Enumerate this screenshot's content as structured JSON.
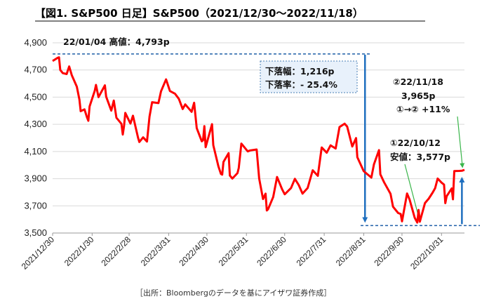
{
  "chart_data": {
    "type": "line",
    "title": "【図1. S&P500 日足】S&P500（2021/12/30～2022/11/18）",
    "ylim": [
      3500,
      4900
    ],
    "y_ticks": [
      "3,500",
      "3,700",
      "3,900",
      "4,100",
      "4,300",
      "4,500",
      "4,700",
      "4,900"
    ],
    "x_tick_labels": [
      "2021/12/30",
      "2022/1/30",
      "2022/2/28",
      "2022/3/31",
      "2022/4/30",
      "2022/5/31",
      "2022/6/30",
      "2022/7/31",
      "2022/8/31",
      "2022/9/30",
      "2022/10/31"
    ],
    "grid": true,
    "series": [
      {
        "color": "#ff0000",
        "x": [
          "2021-12-30",
          "2022-01-03",
          "2022-01-04",
          "2022-01-05",
          "2022-01-07",
          "2022-01-10",
          "2022-01-12",
          "2022-01-14",
          "2022-01-18",
          "2022-01-20",
          "2022-01-21",
          "2022-01-24",
          "2022-01-26",
          "2022-01-27",
          "2022-01-28",
          "2022-02-01",
          "2022-02-02",
          "2022-02-04",
          "2022-02-09",
          "2022-02-10",
          "2022-02-14",
          "2022-02-16",
          "2022-02-18",
          "2022-02-22",
          "2022-02-23",
          "2022-02-24",
          "2022-02-25",
          "2022-03-01",
          "2022-03-03",
          "2022-03-07",
          "2022-03-08",
          "2022-03-11",
          "2022-03-14",
          "2022-03-16",
          "2022-03-18",
          "2022-03-23",
          "2022-03-25",
          "2022-03-29",
          "2022-04-01",
          "2022-04-05",
          "2022-04-08",
          "2022-04-11",
          "2022-04-13",
          "2022-04-18",
          "2022-04-20",
          "2022-04-22",
          "2022-04-26",
          "2022-04-27",
          "2022-04-28",
          "2022-04-29",
          "2022-05-04",
          "2022-05-05",
          "2022-05-09",
          "2022-05-11",
          "2022-05-12",
          "2022-05-13",
          "2022-05-17",
          "2022-05-18",
          "2022-05-20",
          "2022-05-24",
          "2022-05-25",
          "2022-05-27",
          "2022-06-01",
          "2022-06-03",
          "2022-06-08",
          "2022-06-10",
          "2022-06-13",
          "2022-06-15",
          "2022-06-16",
          "2022-06-17",
          "2022-06-21",
          "2022-06-24",
          "2022-06-28",
          "2022-06-30",
          "2022-07-05",
          "2022-07-08",
          "2022-07-11",
          "2022-07-14",
          "2022-07-18",
          "2022-07-22",
          "2022-07-26",
          "2022-07-29",
          "2022-08-02",
          "2022-08-05",
          "2022-08-09",
          "2022-08-12",
          "2022-08-16",
          "2022-08-18",
          "2022-08-22",
          "2022-08-25",
          "2022-08-26",
          "2022-08-31",
          "2022-09-06",
          "2022-09-08",
          "2022-09-12",
          "2022-09-13",
          "2022-09-16",
          "2022-09-21",
          "2022-09-23",
          "2022-09-27",
          "2022-09-29",
          "2022-09-30",
          "2022-10-04",
          "2022-10-06",
          "2022-10-10",
          "2022-10-12",
          "2022-10-13",
          "2022-10-14",
          "2022-10-18",
          "2022-10-21",
          "2022-10-24",
          "2022-10-26",
          "2022-10-28",
          "2022-10-31",
          "2022-11-02",
          "2022-11-03",
          "2022-11-04",
          "2022-11-08",
          "2022-11-09",
          "2022-11-10",
          "2022-11-14",
          "2022-11-16",
          "2022-11-18"
        ],
        "y": [
          4766,
          4790,
          4793,
          4700,
          4677,
          4670,
          4726,
          4662,
          4577,
          4482,
          4397,
          4410,
          4350,
          4326,
          4432,
          4546,
          4590,
          4500,
          4587,
          4504,
          4401,
          4475,
          4349,
          4304,
          4225,
          4288,
          4384,
          4306,
          4363,
          4201,
          4170,
          4204,
          4173,
          4357,
          4463,
          4456,
          4543,
          4631,
          4545,
          4525,
          4488,
          4413,
          4447,
          4392,
          4459,
          4272,
          4175,
          4183,
          4287,
          4132,
          4301,
          4147,
          3991,
          3935,
          3930,
          4023,
          4088,
          3923,
          3901,
          3941,
          3979,
          4158,
          4101,
          4108,
          4115,
          3901,
          3750,
          3790,
          3666,
          3675,
          3765,
          3912,
          3822,
          3785,
          3831,
          3899,
          3854,
          3790,
          3831,
          3962,
          3921,
          4130,
          4091,
          4145,
          4122,
          4280,
          4305,
          4284,
          4137,
          4199,
          4058,
          3955,
          3908,
          4006,
          4110,
          3932,
          3873,
          3789,
          3693,
          3647,
          3640,
          3586,
          3791,
          3745,
          3612,
          3577,
          3670,
          3583,
          3720,
          3753,
          3797,
          3830,
          3901,
          3871,
          3856,
          3720,
          3770,
          3828,
          3748,
          3956,
          3957,
          3958,
          3965
        ]
      }
    ],
    "annotations": {
      "high_label": "22/01/04 高値：4,793p",
      "drop_width": "下落幅：1,216p",
      "drop_rate": "下落率：- 25.4%",
      "low_label_1": "①22/10/12",
      "low_label_2": "安値：3,577p",
      "last_label_1": "②22/11/18",
      "last_label_2": "3,965p",
      "last_label_3": "①→② +11%",
      "levels": {
        "high": 4793,
        "low": 3577,
        "last": 3965,
        "high_dashed": 4818,
        "low_dashed": 3555
      }
    },
    "source": "［出所：Bloombergのデータを基にアイザワ証券作成］"
  }
}
